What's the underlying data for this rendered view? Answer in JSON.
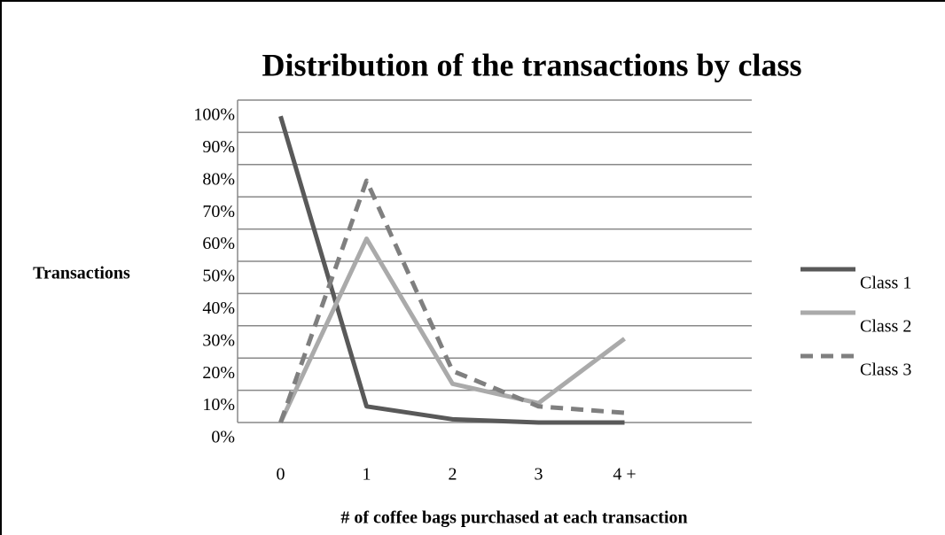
{
  "chart_data": {
    "type": "line",
    "title": "Distribution of the transactions by class",
    "y_label": "Transactions",
    "x_label": "# of coffee bags purchased at each transaction",
    "categories": [
      "0",
      "1",
      "2",
      "3",
      "4 +"
    ],
    "series": [
      {
        "name": "Class 1",
        "color": "#595959",
        "dashed": false,
        "values": [
          95,
          5,
          1,
          0,
          0
        ]
      },
      {
        "name": "Class 2",
        "color": "#aaaaaa",
        "dashed": false,
        "values": [
          0,
          57,
          12,
          6,
          26
        ]
      },
      {
        "name": "Class 3",
        "color": "#7f7f7f",
        "dashed": true,
        "values": [
          0,
          75,
          16,
          5,
          3
        ]
      }
    ],
    "ylim": [
      0,
      100
    ],
    "yticks": [
      {
        "value": 0,
        "label": "0%"
      },
      {
        "value": 10,
        "label": "10%"
      },
      {
        "value": 20,
        "label": "20%"
      },
      {
        "value": 30,
        "label": "30%"
      },
      {
        "value": 40,
        "label": "40%"
      },
      {
        "value": 50,
        "label": "50%"
      },
      {
        "value": 60,
        "label": "60%"
      },
      {
        "value": 70,
        "label": "70%"
      },
      {
        "value": 80,
        "label": "80%"
      },
      {
        "value": 90,
        "label": "90%"
      },
      {
        "value": 100,
        "label": "100%"
      }
    ],
    "grid": true,
    "legend": "right"
  }
}
